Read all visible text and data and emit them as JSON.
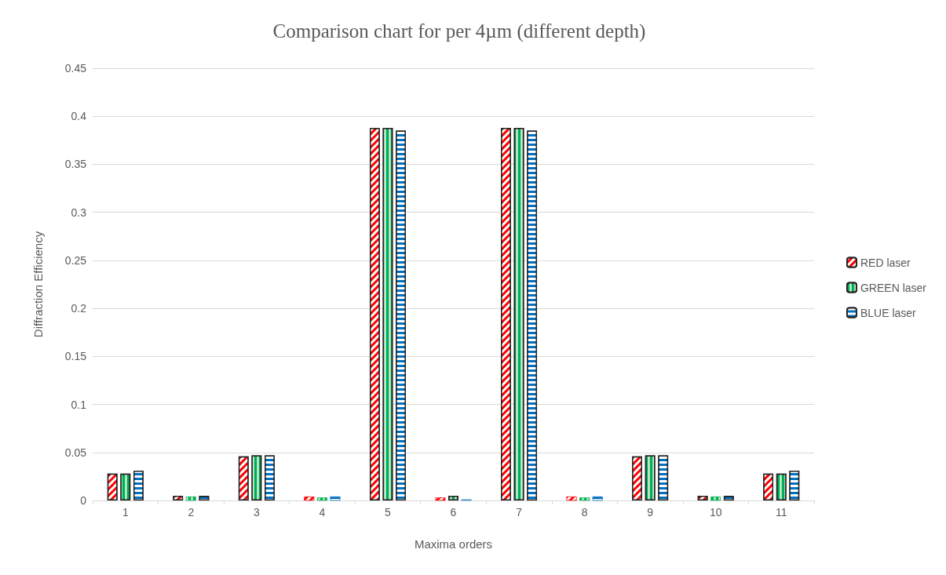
{
  "chart_data": {
    "type": "bar",
    "title": "Comparison chart for per 4µm (different depth)",
    "xlabel": "Maxima orders",
    "ylabel": "Diffraction Efficiency",
    "categories": [
      "1",
      "2",
      "3",
      "4",
      "5",
      "6",
      "7",
      "8",
      "9",
      "10",
      "11"
    ],
    "series": [
      {
        "name": "RED laser",
        "color": "#ff0000",
        "values": [
          0.028,
          0.005,
          0.046,
          0.004,
          0.388,
          0.003,
          0.388,
          0.004,
          0.046,
          0.005,
          0.028
        ]
      },
      {
        "name": "GREEN laser",
        "color": "#00b050",
        "values": [
          0.028,
          0.004,
          0.047,
          0.003,
          0.388,
          0.005,
          0.388,
          0.003,
          0.047,
          0.004,
          0.028
        ]
      },
      {
        "name": "BLUE laser",
        "color": "#0070c0",
        "values": [
          0.031,
          0.005,
          0.047,
          0.004,
          0.385,
          0.001,
          0.385,
          0.004,
          0.047,
          0.005,
          0.031
        ]
      }
    ],
    "ylim": [
      0,
      0.45
    ],
    "yticks": [
      0,
      0.05,
      0.1,
      0.15,
      0.2,
      0.25,
      0.3,
      0.35,
      0.4,
      0.45
    ],
    "grid": "y",
    "legend": "right"
  }
}
